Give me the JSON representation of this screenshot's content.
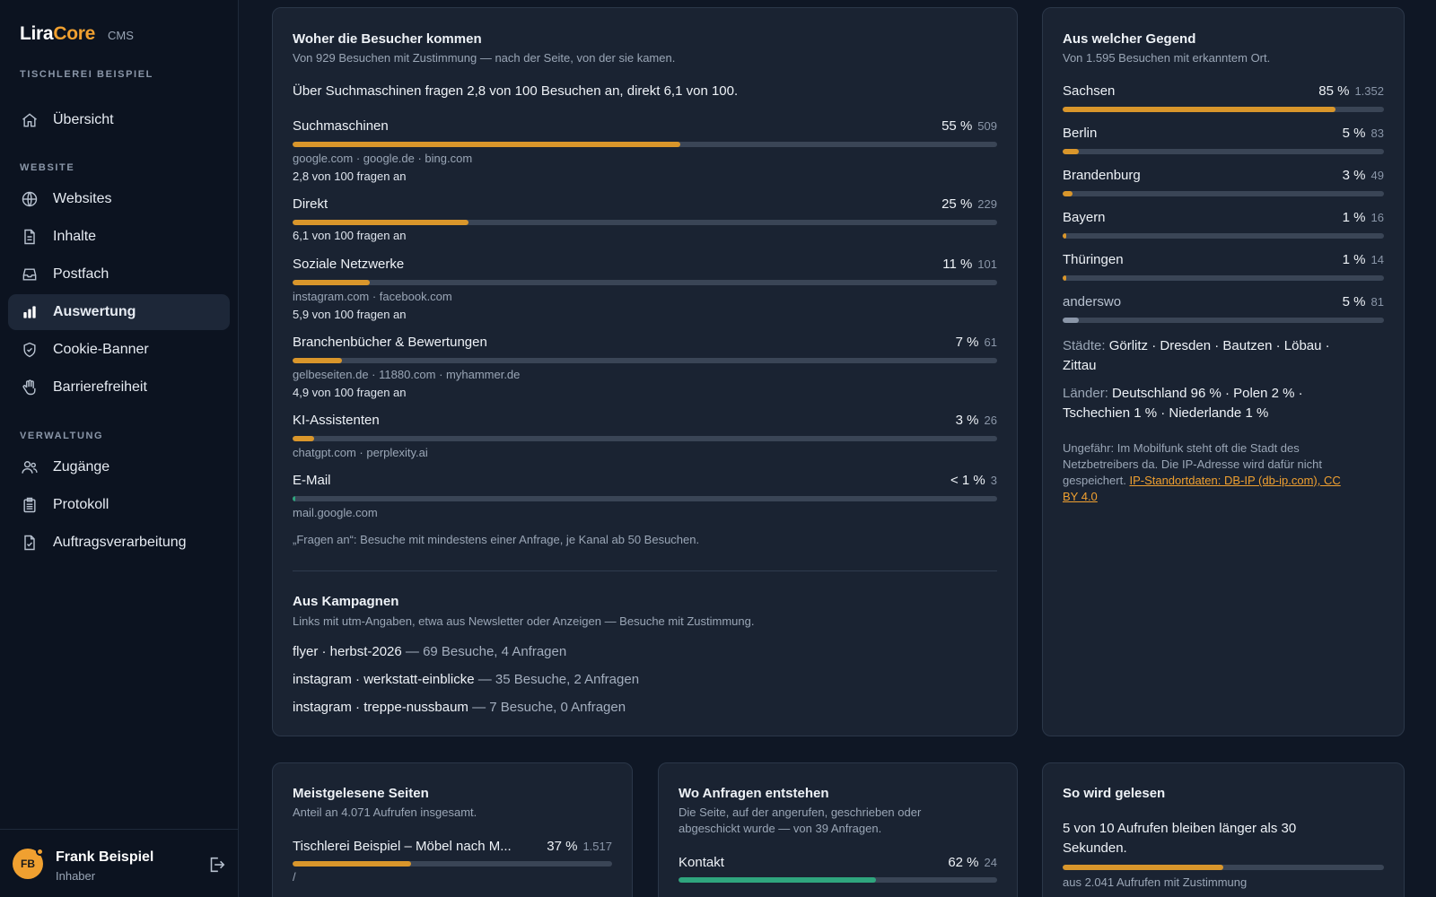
{
  "brand": {
    "lira": "Lira",
    "core": "Core",
    "cms": "CMS"
  },
  "site_name": "TISCHLEREI BEISPIEL",
  "nav": {
    "overview": "Übersicht",
    "section_website": "WEBSITE",
    "websites": "Websites",
    "inhalte": "Inhalte",
    "postfach": "Postfach",
    "auswertung": "Auswertung",
    "cookie": "Cookie-Banner",
    "barriere": "Barrierefreiheit",
    "section_verwaltung": "VERWALTUNG",
    "zugaenge": "Zugänge",
    "protokoll": "Protokoll",
    "auftrag": "Auftragsverarbeitung"
  },
  "user": {
    "initials": "FB",
    "name": "Frank Beispiel",
    "role": "Inhaber"
  },
  "sources": {
    "title": "Woher die Besucher kommen",
    "subtitle": "Von 929 Besuchen mit Zustimmung — nach der Seite, von der sie kamen.",
    "headline": "Über Suchmaschinen fragen 2,8 von 100 Besuchen an, direkt 6,1 von 100.",
    "rows": [
      {
        "name": "Suchmaschinen",
        "pct": "55 %",
        "count": "509",
        "fill": 0.55,
        "domains": "google.com · google.de · bing.com",
        "rate": "2,8 von 100 fragen an"
      },
      {
        "name": "Direkt",
        "pct": "25 %",
        "count": "229",
        "fill": 0.25,
        "domains": "",
        "rate": "6,1 von 100 fragen an"
      },
      {
        "name": "Soziale Netzwerke",
        "pct": "11 %",
        "count": "101",
        "fill": 0.11,
        "domains": "instagram.com · facebook.com",
        "rate": "5,9 von 100 fragen an"
      },
      {
        "name": "Branchenbücher & Bewertungen",
        "pct": "7 %",
        "count": "61",
        "fill": 0.07,
        "domains": "gelbeseiten.de · 11880.com · myhammer.de",
        "rate": "4,9 von 100 fragen an"
      },
      {
        "name": "KI-Assistenten",
        "pct": "3 %",
        "count": "26",
        "fill": 0.03,
        "domains": "chatgpt.com · perplexity.ai",
        "rate": ""
      },
      {
        "name": "E-Mail",
        "pct": "< 1 %",
        "count": "3",
        "fill": 0.003,
        "domains": "mail.google.com",
        "rate": ""
      }
    ],
    "footnote": "„Fragen an“: Besuche mit mindestens einer Anfrage, je Kanal ab 50 Besuchen."
  },
  "campaigns": {
    "title": "Aus Kampagnen",
    "subtitle": "Links mit utm-Angaben, etwa aus Newsletter oder Anzeigen — Besuche mit Zustimmung.",
    "items": [
      {
        "name": "flyer · herbst-2026",
        "rest": "— 69 Besuche, 4 Anfragen"
      },
      {
        "name": "instagram · werkstatt-einblicke",
        "rest": "— 35 Besuche, 2 Anfragen"
      },
      {
        "name": "instagram · treppe-nussbaum",
        "rest": "— 7 Besuche, 0 Anfragen"
      }
    ]
  },
  "region": {
    "title": "Aus welcher Gegend",
    "subtitle": "Von 1.595 Besuchen mit erkanntem Ort.",
    "rows": [
      {
        "name": "Sachsen",
        "pct": "85 %",
        "count": "1.352",
        "fill": 0.85
      },
      {
        "name": "Berlin",
        "pct": "5 %",
        "count": "83",
        "fill": 0.05
      },
      {
        "name": "Brandenburg",
        "pct": "3 %",
        "count": "49",
        "fill": 0.03
      },
      {
        "name": "Bayern",
        "pct": "1 %",
        "count": "16",
        "fill": 0.01
      },
      {
        "name": "Thüringen",
        "pct": "1 %",
        "count": "14",
        "fill": 0.01
      },
      {
        "name": "anderswo",
        "pct": "5 %",
        "count": "81",
        "fill": 0.05
      }
    ],
    "cities_label": "Städte:",
    "cities_line1": "Görlitz · Dresden · Bautzen · Löbau ·",
    "cities_line2": "Zittau",
    "countries_label": "Länder:",
    "countries_line1": "Deutschland 96 % · Polen 2 % ·",
    "countries_line2": "Tschechien 1 % · Niederlande 1 %",
    "note_line1": "Ungefähr: Im Mobilfunk steht oft die Stadt des",
    "note_line2": "Netzbetreibers da. Die IP-Adresse wird dafür nicht",
    "note_line3": "gespeichert.",
    "link_line1": "IP-Standortdaten: DB-IP (db-ip.com), CC",
    "link_line2": "BY 4.0"
  },
  "pages": {
    "title": "Meistgelesene Seiten",
    "subtitle": "Anteil an 4.071 Aufrufen insgesamt.",
    "row_name": "Tischlerei Beispiel – Möbel nach M...",
    "row_pct": "37 %",
    "row_count": "1.517",
    "row_fill": 0.37,
    "row_path": "/"
  },
  "inquiries": {
    "title": "Wo Anfragen entstehen",
    "subtitle_line1": "Die Seite, auf der angerufen, geschrieben oder",
    "subtitle_line2": "abgeschickt wurde — von 39 Anfragen.",
    "row_name": "Kontakt",
    "row_pct": "62 %",
    "row_count": "24",
    "row_fill": 0.62
  },
  "reading": {
    "title": "So wird gelesen",
    "headline_line1": "5 von 10 Aufrufen bleiben länger als 30",
    "headline_line2": "Sekunden.",
    "fill": 0.5,
    "footer": "aus 2.041 Aufrufen mit Zustimmung"
  }
}
